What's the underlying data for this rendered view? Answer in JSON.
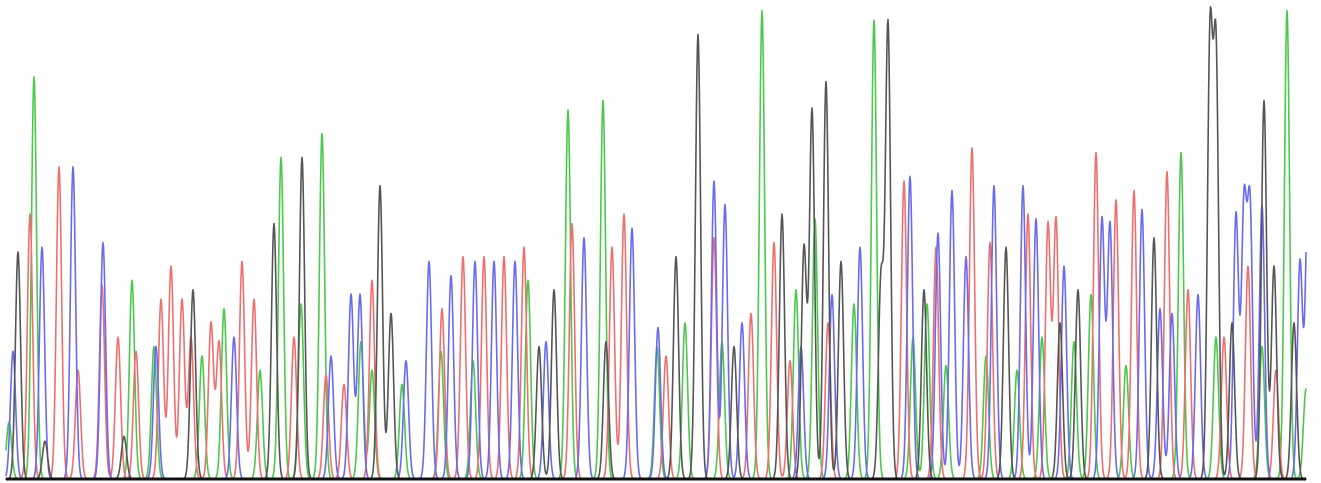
{
  "chart_data": {
    "type": "line",
    "title": "",
    "xlabel": "",
    "ylabel": "",
    "grid": false,
    "legend": "none",
    "xlim": [
      0,
      1300
    ],
    "ylim": [
      0,
      1000
    ],
    "series": [
      {
        "color": "#4cc84c",
        "peaks": [
          [
            3,
            120
          ],
          [
            28,
            850
          ],
          [
            126,
            420
          ],
          [
            148,
            280
          ],
          [
            196,
            260
          ],
          [
            218,
            360
          ],
          [
            254,
            230
          ],
          [
            275,
            680
          ],
          [
            295,
            370
          ],
          [
            316,
            730
          ],
          [
            355,
            290
          ],
          [
            366,
            230
          ],
          [
            396,
            200
          ],
          [
            435,
            270
          ],
          [
            467,
            250
          ],
          [
            522,
            420
          ],
          [
            562,
            780
          ],
          [
            597,
            800
          ],
          [
            651,
            280
          ],
          [
            679,
            330
          ],
          [
            716,
            290
          ],
          [
            756,
            990
          ],
          [
            790,
            400
          ],
          [
            809,
            550
          ],
          [
            848,
            370
          ],
          [
            868,
            970
          ],
          [
            907,
            300
          ],
          [
            921,
            370
          ],
          [
            940,
            240
          ],
          [
            980,
            260
          ],
          [
            1011,
            230
          ],
          [
            1036,
            300
          ],
          [
            1068,
            290
          ],
          [
            1085,
            390
          ],
          [
            1120,
            240
          ],
          [
            1175,
            690
          ],
          [
            1210,
            300
          ],
          [
            1256,
            280
          ],
          [
            1281,
            990
          ],
          [
            1300,
            190
          ]
        ]
      },
      {
        "color": "#ee6f6f",
        "peaks": [
          [
            24,
            560
          ],
          [
            53,
            660
          ],
          [
            72,
            230
          ],
          [
            96,
            410
          ],
          [
            112,
            300
          ],
          [
            130,
            270
          ],
          [
            155,
            380
          ],
          [
            165,
            450
          ],
          [
            176,
            380
          ],
          [
            185,
            300
          ],
          [
            205,
            330
          ],
          [
            213,
            290
          ],
          [
            236,
            460
          ],
          [
            248,
            380
          ],
          [
            288,
            300
          ],
          [
            320,
            220
          ],
          [
            338,
            200
          ],
          [
            366,
            420
          ],
          [
            436,
            360
          ],
          [
            457,
            470
          ],
          [
            478,
            470
          ],
          [
            498,
            470
          ],
          [
            518,
            490
          ],
          [
            566,
            540
          ],
          [
            606,
            490
          ],
          [
            618,
            560
          ],
          [
            660,
            260
          ],
          [
            708,
            510
          ],
          [
            745,
            350
          ],
          [
            768,
            500
          ],
          [
            784,
            250
          ],
          [
            822,
            330
          ],
          [
            898,
            630
          ],
          [
            930,
            490
          ],
          [
            966,
            700
          ],
          [
            984,
            500
          ],
          [
            1022,
            560
          ],
          [
            1042,
            540
          ],
          [
            1050,
            550
          ],
          [
            1090,
            690
          ],
          [
            1110,
            590
          ],
          [
            1128,
            610
          ],
          [
            1161,
            650
          ],
          [
            1182,
            400
          ],
          [
            1218,
            300
          ],
          [
            1242,
            450
          ],
          [
            1270,
            230
          ]
        ]
      },
      {
        "color": "#6a6aee",
        "peaks": [
          [
            7,
            270
          ],
          [
            36,
            490
          ],
          [
            67,
            660
          ],
          [
            97,
            500
          ],
          [
            150,
            280
          ],
          [
            228,
            300
          ],
          [
            325,
            260
          ],
          [
            345,
            390
          ],
          [
            354,
            390
          ],
          [
            400,
            250
          ],
          [
            423,
            460
          ],
          [
            445,
            430
          ],
          [
            469,
            460
          ],
          [
            488,
            460
          ],
          [
            509,
            460
          ],
          [
            540,
            290
          ],
          [
            578,
            510
          ],
          [
            626,
            530
          ],
          [
            652,
            320
          ],
          [
            708,
            630
          ],
          [
            719,
            580
          ],
          [
            736,
            330
          ],
          [
            795,
            280
          ],
          [
            826,
            390
          ],
          [
            854,
            490
          ],
          [
            904,
            640
          ],
          [
            932,
            520
          ],
          [
            946,
            610
          ],
          [
            960,
            470
          ],
          [
            988,
            620
          ],
          [
            1017,
            620
          ],
          [
            1030,
            550
          ],
          [
            1058,
            450
          ],
          [
            1096,
            550
          ],
          [
            1104,
            540
          ],
          [
            1136,
            570
          ],
          [
            1154,
            360
          ],
          [
            1166,
            350
          ],
          [
            1192,
            390
          ],
          [
            1230,
            560
          ],
          [
            1238,
            570
          ],
          [
            1244,
            570
          ],
          [
            1256,
            580
          ],
          [
            1294,
            460
          ],
          [
            1302,
            600
          ]
        ]
      },
      {
        "color": "#555555",
        "peaks": [
          [
            12,
            480
          ],
          [
            39,
            80
          ],
          [
            118,
            90
          ],
          [
            187,
            400
          ],
          [
            268,
            540
          ],
          [
            296,
            680
          ],
          [
            374,
            620
          ],
          [
            385,
            350
          ],
          [
            533,
            280
          ],
          [
            548,
            400
          ],
          [
            600,
            290
          ],
          [
            670,
            470
          ],
          [
            692,
            940
          ],
          [
            728,
            280
          ],
          [
            776,
            560
          ],
          [
            798,
            490
          ],
          [
            806,
            780
          ],
          [
            820,
            840
          ],
          [
            835,
            460
          ],
          [
            875,
            420
          ],
          [
            882,
            960
          ],
          [
            918,
            400
          ],
          [
            1000,
            490
          ],
          [
            1054,
            330
          ],
          [
            1072,
            400
          ],
          [
            1148,
            510
          ],
          [
            1204,
            920
          ],
          [
            1210,
            890
          ],
          [
            1226,
            330
          ],
          [
            1258,
            800
          ],
          [
            1268,
            450
          ],
          [
            1288,
            330
          ]
        ]
      }
    ]
  }
}
